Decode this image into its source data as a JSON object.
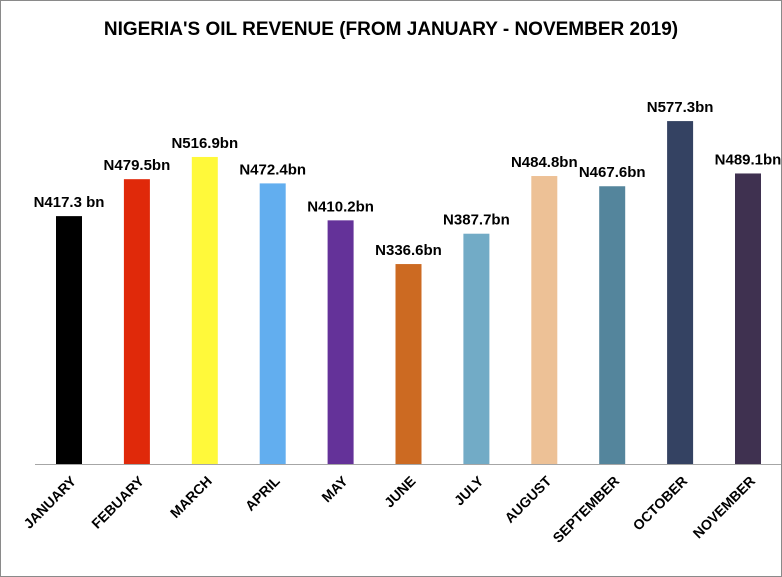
{
  "chart_data": {
    "type": "bar",
    "title": "NIGERIA'S OIL REVENUE (FROM JANUARY - NOVEMBER 2019)",
    "xlabel": "",
    "ylabel": "",
    "categories": [
      "JANUARY",
      "FEBUARY",
      "MARCH",
      "APRIL",
      "MAY",
      "JUNE",
      "JULY",
      "AUGUST",
      "SEPTEMBER",
      "OCTOBER",
      "NOVEMBER"
    ],
    "values": [
      417.3,
      479.5,
      516.9,
      472.4,
      410.2,
      336.6,
      387.7,
      484.8,
      467.6,
      577.3,
      489.1
    ],
    "data_labels": [
      "N417.3 bn",
      "N479.5bn",
      "N516.9bn",
      "N472.4bn",
      "N410.2bn",
      "N336.6bn",
      "N387.7bn",
      "N484.8bn",
      "N467.6bn",
      "N577.3bn",
      "N489.1bn"
    ],
    "colors": [
      "#000000",
      "#e0290a",
      "#fff93a",
      "#62aeef",
      "#643299",
      "#cc6a22",
      "#72abc6",
      "#edc196",
      "#54859c",
      "#344262",
      "#3f3150"
    ],
    "ylim": [
      0,
      580
    ],
    "grid": false,
    "legend": "none",
    "y_axis_visible": false
  }
}
